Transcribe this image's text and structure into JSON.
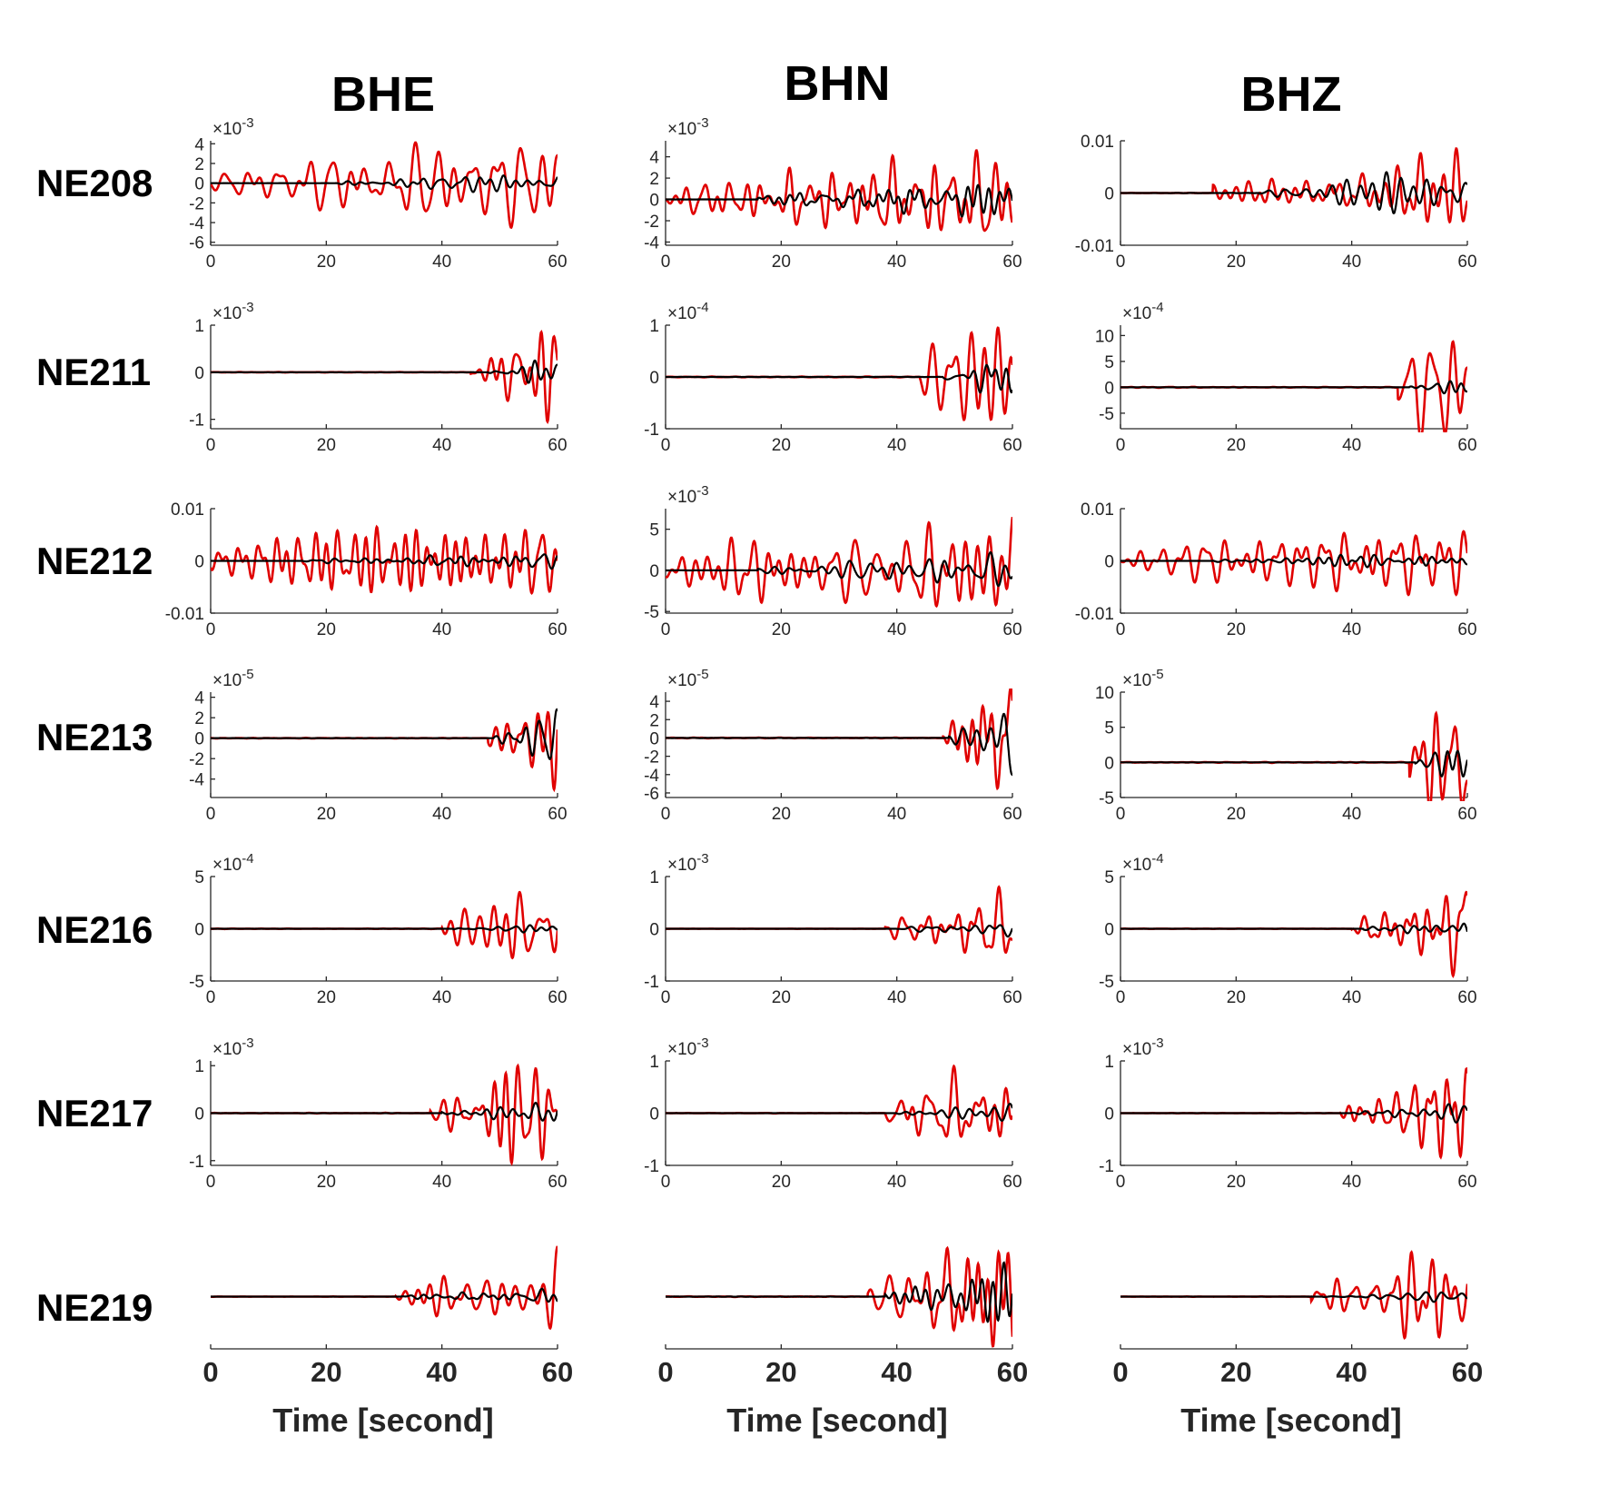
{
  "chart_data": {
    "type": "line",
    "column_titles": [
      "BHE",
      "BHN",
      "BHZ"
    ],
    "row_labels": [
      "NE208",
      "NE211",
      "NE212",
      "NE213",
      "NE216",
      "NE217",
      "NE219"
    ],
    "xlabel": "Time [second]",
    "xlim": [
      0,
      60
    ],
    "xticks": [
      0,
      20,
      40,
      60
    ],
    "series_colors": {
      "red": "#e00000",
      "black": "#000000"
    },
    "panels": [
      {
        "row": 0,
        "col": 0,
        "ylim": [
          -6.3,
          4.3
        ],
        "yticks": [
          "4",
          "2",
          "0",
          "-2",
          "-4",
          "-6"
        ],
        "ytickvals": [
          4,
          2,
          0,
          -2,
          -4,
          -6
        ],
        "exponent": "-3",
        "onset": 0,
        "red_amp": 4.5,
        "black_amp": 0.9,
        "black_onset": 22,
        "seed": 11
      },
      {
        "row": 0,
        "col": 1,
        "ylim": [
          -4.3,
          5.5
        ],
        "yticks": [
          "4",
          "2",
          "0",
          "-2",
          "-4"
        ],
        "ytickvals": [
          4,
          2,
          0,
          -2,
          -4
        ],
        "exponent": "-3",
        "onset": 0,
        "red_amp": 4.6,
        "black_amp": 1.6,
        "black_onset": 16,
        "seed": 23
      },
      {
        "row": 0,
        "col": 2,
        "ylim": [
          -0.01,
          0.01
        ],
        "yticks": [
          "0.01",
          "0",
          "-0.01"
        ],
        "ytickvals": [
          0.01,
          0,
          -0.01
        ],
        "exponent": "",
        "onset": 16,
        "red_amp": 0.0085,
        "black_amp": 0.004,
        "black_onset": 24,
        "seed": 37
      },
      {
        "row": 1,
        "col": 0,
        "ylim": [
          -1.2,
          1.0
        ],
        "yticks": [
          "1",
          "0",
          "-1"
        ],
        "ytickvals": [
          1,
          0,
          -1
        ],
        "exponent": "-3",
        "onset": 45,
        "red_amp": 1.05,
        "black_amp": 0.25,
        "black_onset": 48,
        "seed": 41
      },
      {
        "row": 1,
        "col": 1,
        "ylim": [
          -1.0,
          1.0
        ],
        "yticks": [
          "1",
          "0",
          "-1"
        ],
        "ytickvals": [
          1,
          0,
          -1
        ],
        "exponent": "-4",
        "onset": 44,
        "red_amp": 0.95,
        "black_amp": 0.3,
        "black_onset": 48,
        "seed": 53
      },
      {
        "row": 1,
        "col": 2,
        "ylim": [
          -8,
          12
        ],
        "yticks": [
          "10",
          "5",
          "0",
          "-5"
        ],
        "ytickvals": [
          10,
          5,
          0,
          -5
        ],
        "exponent": "-4",
        "onset": 48,
        "red_amp": 10,
        "black_amp": 1.2,
        "black_onset": 50,
        "seed": 61
      },
      {
        "row": 2,
        "col": 0,
        "ylim": [
          -0.01,
          0.01
        ],
        "yticks": [
          "0.01",
          "0",
          "-0.01"
        ],
        "ytickvals": [
          0.01,
          0,
          -0.01
        ],
        "exponent": "",
        "onset": 0,
        "red_amp": 0.0065,
        "black_amp": 0.0015,
        "black_onset": 16,
        "seed": 71
      },
      {
        "row": 2,
        "col": 1,
        "ylim": [
          -5.2,
          7.5
        ],
        "yticks": [
          "5",
          "0",
          "-5"
        ],
        "ytickvals": [
          5,
          0,
          -5
        ],
        "exponent": "-3",
        "onset": 0,
        "red_amp": 6.5,
        "black_amp": 2.2,
        "black_onset": 16,
        "seed": 83
      },
      {
        "row": 2,
        "col": 2,
        "ylim": [
          -0.01,
          0.01
        ],
        "yticks": [
          "0.01",
          "0",
          "-0.01"
        ],
        "ytickvals": [
          0.01,
          0,
          -0.01
        ],
        "exponent": "",
        "onset": 0,
        "red_amp": 0.0065,
        "black_amp": 0.0012,
        "black_onset": 16,
        "seed": 97
      },
      {
        "row": 3,
        "col": 0,
        "ylim": [
          -5.8,
          4.5
        ],
        "yticks": [
          "4",
          "2",
          "0",
          "-2",
          "-4"
        ],
        "ytickvals": [
          4,
          2,
          0,
          -2,
          -4
        ],
        "exponent": "-5",
        "onset": 48,
        "red_amp": 5.0,
        "black_amp": 2.8,
        "black_onset": 49,
        "seed": 101
      },
      {
        "row": 3,
        "col": 1,
        "ylim": [
          -6.5,
          5.0
        ],
        "yticks": [
          "4",
          "2",
          "0",
          "-2",
          "-4",
          "-6"
        ],
        "ytickvals": [
          4,
          2,
          0,
          -2,
          -4,
          -6
        ],
        "exponent": "-5",
        "onset": 48,
        "red_amp": 5.5,
        "black_amp": 4.0,
        "black_onset": 49,
        "seed": 113
      },
      {
        "row": 3,
        "col": 2,
        "ylim": [
          -5,
          10
        ],
        "yticks": [
          "10",
          "5",
          "0",
          "-5"
        ],
        "ytickvals": [
          10,
          5,
          0,
          -5
        ],
        "exponent": "-5",
        "onset": 50,
        "red_amp": 7.0,
        "black_amp": 2.0,
        "black_onset": 51,
        "seed": 127
      },
      {
        "row": 4,
        "col": 0,
        "ylim": [
          -5,
          5
        ],
        "yticks": [
          "5",
          "0",
          "-5"
        ],
        "ytickvals": [
          5,
          0,
          -5
        ],
        "exponent": "-4",
        "onset": 40,
        "red_amp": 3.5,
        "black_amp": 0.35,
        "black_onset": 42,
        "seed": 131
      },
      {
        "row": 4,
        "col": 1,
        "ylim": [
          -1,
          1
        ],
        "yticks": [
          "1",
          "0",
          "-1"
        ],
        "ytickvals": [
          1,
          0,
          -1
        ],
        "exponent": "-3",
        "onset": 38,
        "red_amp": 0.8,
        "black_amp": 0.15,
        "black_onset": 40,
        "seed": 149
      },
      {
        "row": 4,
        "col": 2,
        "ylim": [
          -5,
          5
        ],
        "yticks": [
          "5",
          "0",
          "-5"
        ],
        "ytickvals": [
          5,
          0,
          -5
        ],
        "exponent": "-4",
        "onset": 40,
        "red_amp": 4.5,
        "black_amp": 0.5,
        "black_onset": 42,
        "seed": 151
      },
      {
        "row": 5,
        "col": 0,
        "ylim": [
          -1.1,
          1.1
        ],
        "yticks": [
          "1",
          "0",
          "-1"
        ],
        "ytickvals": [
          1,
          0,
          -1
        ],
        "exponent": "-3",
        "onset": 38,
        "red_amp": 1.05,
        "black_amp": 0.22,
        "black_onset": 40,
        "seed": 163
      },
      {
        "row": 5,
        "col": 1,
        "ylim": [
          -1,
          1
        ],
        "yticks": [
          "1",
          "0",
          "-1"
        ],
        "ytickvals": [
          1,
          0,
          -1
        ],
        "exponent": "-3",
        "onset": 38,
        "red_amp": 0.9,
        "black_amp": 0.18,
        "black_onset": 40,
        "seed": 173
      },
      {
        "row": 5,
        "col": 2,
        "ylim": [
          -1,
          1
        ],
        "yticks": [
          "1",
          "0",
          "-1"
        ],
        "ytickvals": [
          1,
          0,
          -1
        ],
        "exponent": "-3",
        "onset": 38,
        "red_amp": 0.85,
        "black_amp": 0.18,
        "black_onset": 40,
        "seed": 181
      },
      {
        "row": 6,
        "col": 0,
        "ylim": [
          -1.0,
          1.0
        ],
        "yticks": [],
        "ytickvals": [],
        "exponent": "",
        "onset": 32,
        "red_amp": 0.95,
        "black_amp": 0.15,
        "black_onset": 33,
        "seed": 191
      },
      {
        "row": 6,
        "col": 1,
        "ylim": [
          -1.0,
          1.0
        ],
        "yticks": [],
        "ytickvals": [],
        "exponent": "",
        "onset": 35,
        "red_amp": 0.95,
        "black_amp": 0.65,
        "black_onset": 38,
        "seed": 197
      },
      {
        "row": 6,
        "col": 2,
        "ylim": [
          -1.0,
          1.0
        ],
        "yticks": [],
        "ytickvals": [],
        "exponent": "",
        "onset": 33,
        "red_amp": 0.85,
        "black_amp": 0.1,
        "black_onset": 35,
        "seed": 211
      }
    ]
  }
}
